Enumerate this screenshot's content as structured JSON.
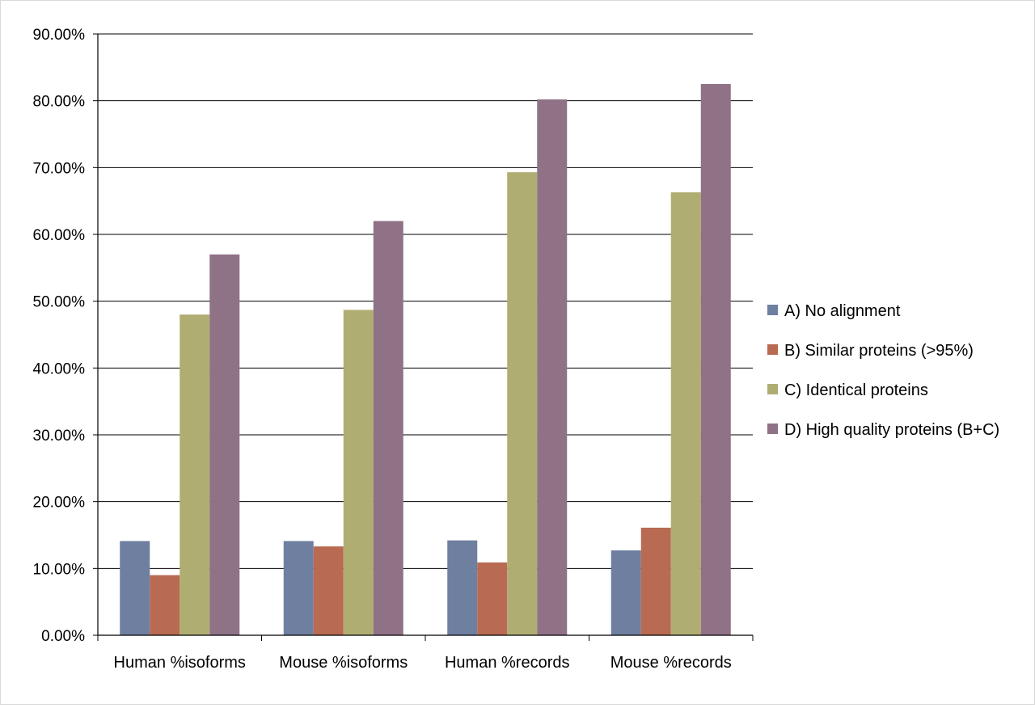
{
  "chart_data": {
    "type": "bar",
    "title": "",
    "xlabel": "",
    "ylabel": "",
    "categories": [
      "Human %isoforms",
      "Mouse %isoforms",
      "Human %records",
      "Mouse %records"
    ],
    "series": [
      {
        "name": "A) No alignment",
        "color": "#6f7fa0",
        "values": [
          14.1,
          14.1,
          14.2,
          12.7
        ]
      },
      {
        "name": "B) Similar proteins (>95%)",
        "color": "#b86a52",
        "values": [
          9.0,
          13.3,
          10.9,
          16.1
        ]
      },
      {
        "name": "C) Identical proteins",
        "color": "#b0ad72",
        "values": [
          48.0,
          48.7,
          69.3,
          66.3
        ]
      },
      {
        "name": "D) High quality proteins (B+C)",
        "color": "#8f7286",
        "values": [
          57.0,
          62.0,
          80.2,
          82.5
        ]
      }
    ],
    "ylim": [
      0,
      90
    ],
    "ytick_step": 10,
    "ytick_labels": [
      "0.00%",
      "10.00%",
      "20.00%",
      "30.00%",
      "40.00%",
      "50.00%",
      "60.00%",
      "70.00%",
      "80.00%",
      "90.00%"
    ],
    "grid": true,
    "legend_position": "right"
  }
}
